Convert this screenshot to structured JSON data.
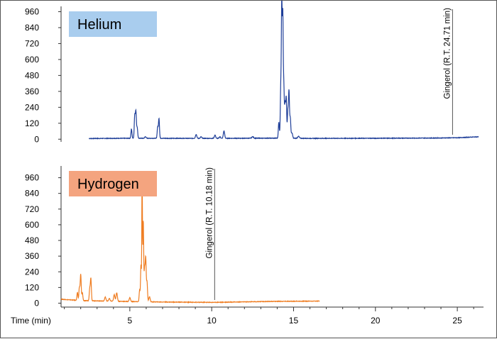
{
  "chart_data": {
    "type": "line",
    "xlabel": "Time (min)",
    "xlim": [
      0.8,
      26.6
    ],
    "xticks": [
      5,
      10,
      15,
      20,
      25
    ],
    "panels": [
      {
        "name": "Helium",
        "color": "#1f3f99",
        "badge_color": "#a9cdee",
        "ylim": [
          -20,
          1000
        ],
        "yticks": [
          0,
          120,
          240,
          360,
          480,
          600,
          720,
          840,
          960
        ],
        "annotation": {
          "text": "Gingerol (R.T. 24.71 min)",
          "x": 24.71
        },
        "data_x_range": [
          2.5,
          26.3
        ],
        "baseline": {
          "x": [
            2.5,
            5,
            10,
            14,
            16,
            20,
            24,
            25,
            26.3
          ],
          "y": [
            5,
            7,
            6,
            8,
            6,
            7,
            9,
            11,
            18
          ]
        },
        "peaks": [
          {
            "x": 5.1,
            "h": 70,
            "w": 0.03
          },
          {
            "x": 5.3,
            "h": 170,
            "w": 0.03
          },
          {
            "x": 5.37,
            "h": 200,
            "w": 0.03
          },
          {
            "x": 5.45,
            "h": 80,
            "w": 0.03
          },
          {
            "x": 5.95,
            "h": 12,
            "w": 0.04
          },
          {
            "x": 6.7,
            "h": 85,
            "w": 0.03
          },
          {
            "x": 6.78,
            "h": 150,
            "w": 0.03
          },
          {
            "x": 9.05,
            "h": 30,
            "w": 0.04
          },
          {
            "x": 9.35,
            "h": 12,
            "w": 0.04
          },
          {
            "x": 10.2,
            "h": 25,
            "w": 0.04
          },
          {
            "x": 10.5,
            "h": 12,
            "w": 0.04
          },
          {
            "x": 10.75,
            "h": 55,
            "w": 0.04
          },
          {
            "x": 12.5,
            "h": 12,
            "w": 0.05
          },
          {
            "x": 14.1,
            "h": 120,
            "w": 0.03
          },
          {
            "x": 14.22,
            "h": 390,
            "w": 0.03
          },
          {
            "x": 14.28,
            "h": 980,
            "w": 0.025
          },
          {
            "x": 14.34,
            "h": 880,
            "w": 0.025
          },
          {
            "x": 14.4,
            "h": 400,
            "w": 0.03
          },
          {
            "x": 14.48,
            "h": 250,
            "w": 0.03
          },
          {
            "x": 14.55,
            "h": 300,
            "w": 0.03
          },
          {
            "x": 14.65,
            "h": 200,
            "w": 0.03
          },
          {
            "x": 14.72,
            "h": 350,
            "w": 0.03
          },
          {
            "x": 14.8,
            "h": 150,
            "w": 0.03
          },
          {
            "x": 14.9,
            "h": 40,
            "w": 0.04
          },
          {
            "x": 15.3,
            "h": 15,
            "w": 0.05
          }
        ]
      },
      {
        "name": "Hydrogen",
        "color": "#ef7d22",
        "badge_color": "#f4a47f",
        "ylim": [
          -30,
          1050
        ],
        "yticks": [
          0,
          120,
          240,
          360,
          480,
          600,
          720,
          840,
          960
        ],
        "annotation": {
          "text": "Gingerol (R.T. 10.18 min)",
          "x": 10.18
        },
        "data_x_range": [
          0.8,
          16.6
        ],
        "baseline": {
          "x": [
            0.8,
            2,
            4,
            6,
            8,
            10,
            11,
            12,
            14,
            16.6
          ],
          "y": [
            30,
            20,
            15,
            10,
            8,
            6,
            8,
            10,
            14,
            16
          ]
        },
        "peaks": [
          {
            "x": 1.8,
            "h": 60,
            "w": 0.03
          },
          {
            "x": 1.92,
            "h": 100,
            "w": 0.03
          },
          {
            "x": 2.0,
            "h": 200,
            "w": 0.03
          },
          {
            "x": 2.1,
            "h": 60,
            "w": 0.03
          },
          {
            "x": 2.55,
            "h": 90,
            "w": 0.03
          },
          {
            "x": 2.62,
            "h": 170,
            "w": 0.03
          },
          {
            "x": 3.5,
            "h": 30,
            "w": 0.04
          },
          {
            "x": 3.75,
            "h": 20,
            "w": 0.04
          },
          {
            "x": 4.05,
            "h": 50,
            "w": 0.04
          },
          {
            "x": 4.2,
            "h": 65,
            "w": 0.04
          },
          {
            "x": 5.0,
            "h": 30,
            "w": 0.04
          },
          {
            "x": 5.6,
            "h": 90,
            "w": 0.03
          },
          {
            "x": 5.68,
            "h": 280,
            "w": 0.025
          },
          {
            "x": 5.75,
            "h": 970,
            "w": 0.02
          },
          {
            "x": 5.82,
            "h": 620,
            "w": 0.025
          },
          {
            "x": 5.9,
            "h": 250,
            "w": 0.03
          },
          {
            "x": 5.97,
            "h": 330,
            "w": 0.03
          },
          {
            "x": 6.05,
            "h": 150,
            "w": 0.03
          },
          {
            "x": 6.2,
            "h": 40,
            "w": 0.04
          }
        ]
      }
    ]
  }
}
